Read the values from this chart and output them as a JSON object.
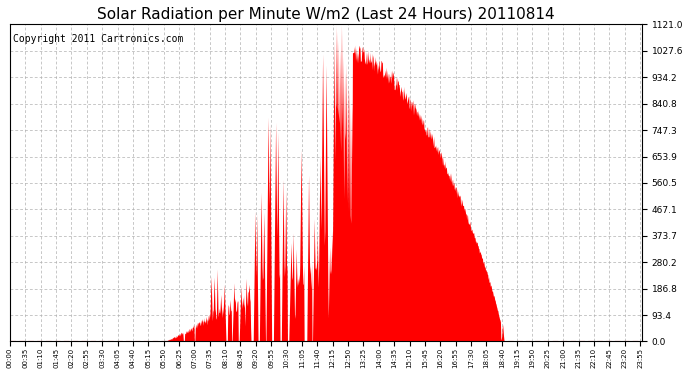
{
  "title": "Solar Radiation per Minute W/m2 (Last 24 Hours) 20110814",
  "copyright": "Copyright 2011 Cartronics.com",
  "y_max": 1121.0,
  "y_min": 0.0,
  "y_ticks": [
    0.0,
    93.4,
    186.8,
    280.2,
    373.7,
    467.1,
    560.5,
    653.9,
    747.3,
    840.8,
    934.2,
    1027.6,
    1121.0
  ],
  "background_color": "#ffffff",
  "fill_color": "#ff0000",
  "line_color": "#ff0000",
  "grid_color": "#b0b0b0",
  "title_fontsize": 11,
  "copyright_fontsize": 7,
  "x_tick_step": 35
}
